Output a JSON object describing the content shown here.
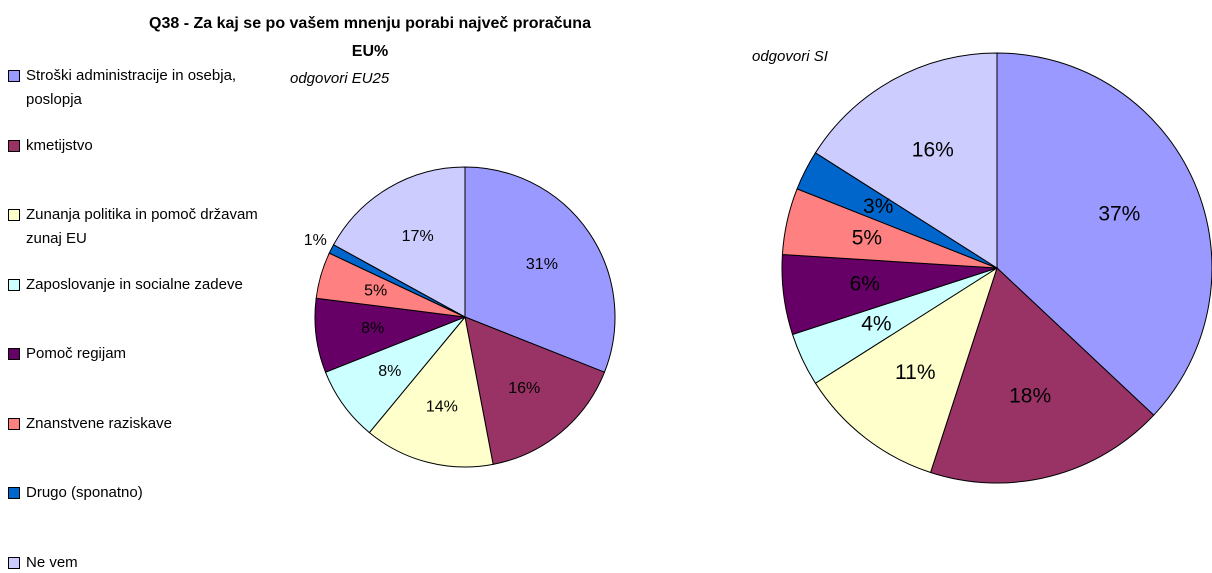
{
  "chart_data": {
    "type": "pie",
    "title": "Q38 - Za kaj se po vašem mnenju porabi največ proračuna EU%",
    "categories": [
      "Stroški administracije in osebja, poslopja",
      "kmetijstvo",
      "Zunanja politika in pomoč državam zunaj EU",
      "Zaposlovanje in socialne zadeve",
      "Pomoč regijam",
      "Znanstvene raziskave",
      "Drugo (sponatno)",
      "Ne vem"
    ],
    "colors": [
      "#9999FF",
      "#993366",
      "#FFFFCC",
      "#CCFFFF",
      "#660066",
      "#FF8080",
      "#0066CC",
      "#CCCCFF"
    ],
    "series": [
      {
        "name": "odgovori EU25",
        "values": [
          31,
          16,
          14,
          8,
          8,
          5,
          1,
          17
        ],
        "value_labels": [
          "31%",
          "16%",
          "14%",
          "8%",
          "8%",
          "5%",
          "1%",
          "17%"
        ]
      },
      {
        "name": "odgovori SI",
        "values": [
          37,
          18,
          11,
          4,
          6,
          5,
          3,
          16
        ],
        "value_labels": [
          "37%",
          "18%",
          "11%",
          "4%",
          "6%",
          "5%",
          "3%",
          "16%"
        ]
      }
    ]
  }
}
